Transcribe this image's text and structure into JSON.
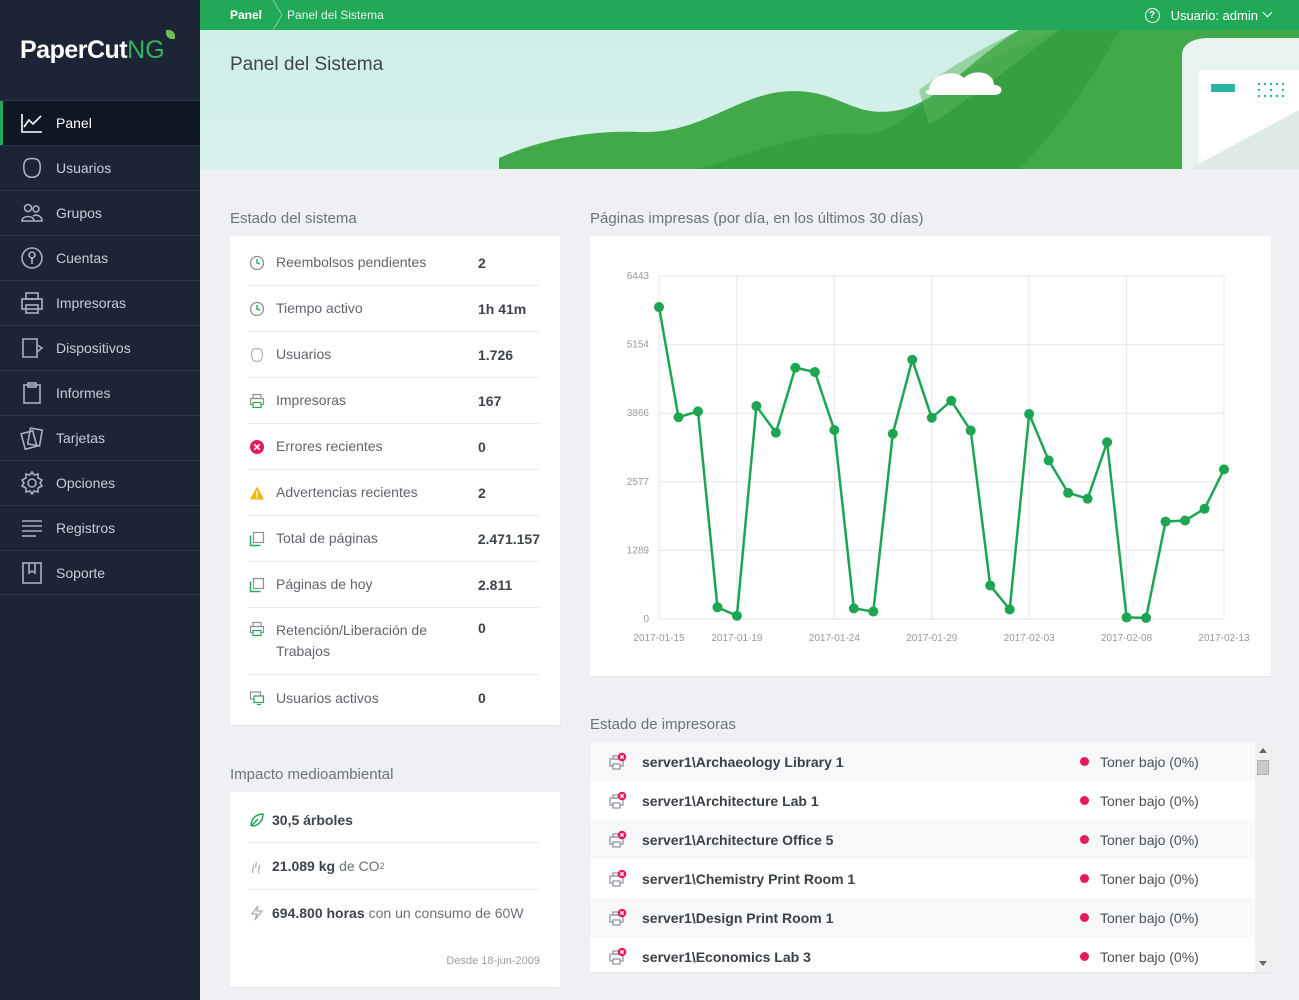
{
  "app": {
    "logo_main": "PaperCut",
    "logo_ng": "NG"
  },
  "sidebar": {
    "items": [
      {
        "label": "Panel",
        "icon": "chart-line-icon",
        "active": true
      },
      {
        "label": "Usuarios",
        "icon": "user-icon"
      },
      {
        "label": "Grupos",
        "icon": "group-icon"
      },
      {
        "label": "Cuentas",
        "icon": "account-icon"
      },
      {
        "label": "Impresoras",
        "icon": "printer-icon"
      },
      {
        "label": "Dispositivos",
        "icon": "device-icon"
      },
      {
        "label": "Informes",
        "icon": "clipboard-icon"
      },
      {
        "label": "Tarjetas",
        "icon": "cards-icon"
      },
      {
        "label": "Opciones",
        "icon": "gear-icon"
      },
      {
        "label": "Registros",
        "icon": "lines-icon"
      },
      {
        "label": "Soporte",
        "icon": "book-icon"
      }
    ]
  },
  "topbar": {
    "breadcrumb_root": "Panel",
    "breadcrumb_current": "Panel del Sistema",
    "user_label": "Usuario: admin"
  },
  "header": {
    "title": "Panel del Sistema"
  },
  "status": {
    "title": "Estado del sistema",
    "rows": [
      {
        "label": "Reembolsos pendientes",
        "value": "2",
        "icon": "clock-icon"
      },
      {
        "label": "Tiempo activo",
        "value": "1h 41m",
        "icon": "clock-icon"
      },
      {
        "label": "Usuarios",
        "value": "1.726",
        "icon": "user-icon"
      },
      {
        "label": "Impresoras",
        "value": "167",
        "icon": "printer-icon"
      },
      {
        "label": "Errores recientes",
        "value": "0",
        "icon": "error-icon"
      },
      {
        "label": "Advertencias recientes",
        "value": "2",
        "icon": "warning-icon"
      },
      {
        "label": "Total de páginas",
        "value": "2.471.157",
        "icon": "pages-icon"
      },
      {
        "label": "Páginas de hoy",
        "value": "2.811",
        "icon": "pages-icon"
      },
      {
        "label": "Retención/Liberación de Trabajos",
        "value": "0",
        "icon": "printer-icon"
      },
      {
        "label": "Usuarios activos",
        "value": "0",
        "icon": "monitor-icon"
      }
    ]
  },
  "environment": {
    "title": "Impacto medioambiental",
    "trees_value": "30,5 árboles",
    "co2_value": "21.089 kg",
    "co2_suffix": "de CO",
    "co2_sub": "2",
    "hours_value": "694.800 horas",
    "hours_suffix": "con un consumo de 60W",
    "since": "Desde 18-jun-2009"
  },
  "chart_section": {
    "title": "Páginas impresas (por día, en los últimos 30 días)"
  },
  "chart_data": {
    "type": "line",
    "title": "Páginas impresas (por día, en los últimos 30 días)",
    "xlabel": "",
    "ylabel": "",
    "x": [
      "2017-01-15",
      "2017-01-16",
      "2017-01-17",
      "2017-01-18",
      "2017-01-19",
      "2017-01-20",
      "2017-01-21",
      "2017-01-22",
      "2017-01-23",
      "2017-01-24",
      "2017-01-25",
      "2017-01-26",
      "2017-01-27",
      "2017-01-28",
      "2017-01-29",
      "2017-01-30",
      "2017-01-31",
      "2017-02-01",
      "2017-02-02",
      "2017-02-03",
      "2017-02-04",
      "2017-02-05",
      "2017-02-06",
      "2017-02-07",
      "2017-02-08",
      "2017-02-09",
      "2017-02-10",
      "2017-02-11",
      "2017-02-12",
      "2017-02-13"
    ],
    "x_ticks": [
      "2017-01-15",
      "2017-01-19",
      "2017-01-24",
      "2017-01-29",
      "2017-02-03",
      "2017-02-08",
      "2017-02-13"
    ],
    "y_ticks": [
      0,
      1289,
      2577,
      3866,
      5154,
      6443
    ],
    "ylim": [
      0,
      6443
    ],
    "color": "#1ca553",
    "series": [
      {
        "values": [
          5860,
          3790,
          3900,
          220,
          60,
          4000,
          3500,
          4720,
          4640,
          3550,
          200,
          140,
          3480,
          4870,
          3780,
          4100,
          3540,
          630,
          180,
          3850,
          2980,
          2370,
          2260,
          3320,
          30,
          20,
          1830,
          1850,
          2070,
          2810
        ]
      }
    ],
    "grid": true,
    "legend": "none"
  },
  "printers": {
    "title": "Estado de impresoras",
    "rows": [
      {
        "name": "server1\\Archaeology Library 1",
        "status": "Toner bajo (0%)"
      },
      {
        "name": "server1\\Architecture Lab 1",
        "status": "Toner bajo (0%)"
      },
      {
        "name": "server1\\Architecture Office 5",
        "status": "Toner bajo (0%)"
      },
      {
        "name": "server1\\Chemistry Print Room 1",
        "status": "Toner bajo (0%)"
      },
      {
        "name": "server1\\Design Print Room 1",
        "status": "Toner bajo (0%)"
      },
      {
        "name": "server1\\Economics Lab 3",
        "status": "Toner bajo (0%)"
      }
    ]
  },
  "colors": {
    "brand_green": "#21a957",
    "sidebar_bg": "#1b2536",
    "error_red": "#e5195c",
    "warning_yellow": "#f2b705"
  }
}
